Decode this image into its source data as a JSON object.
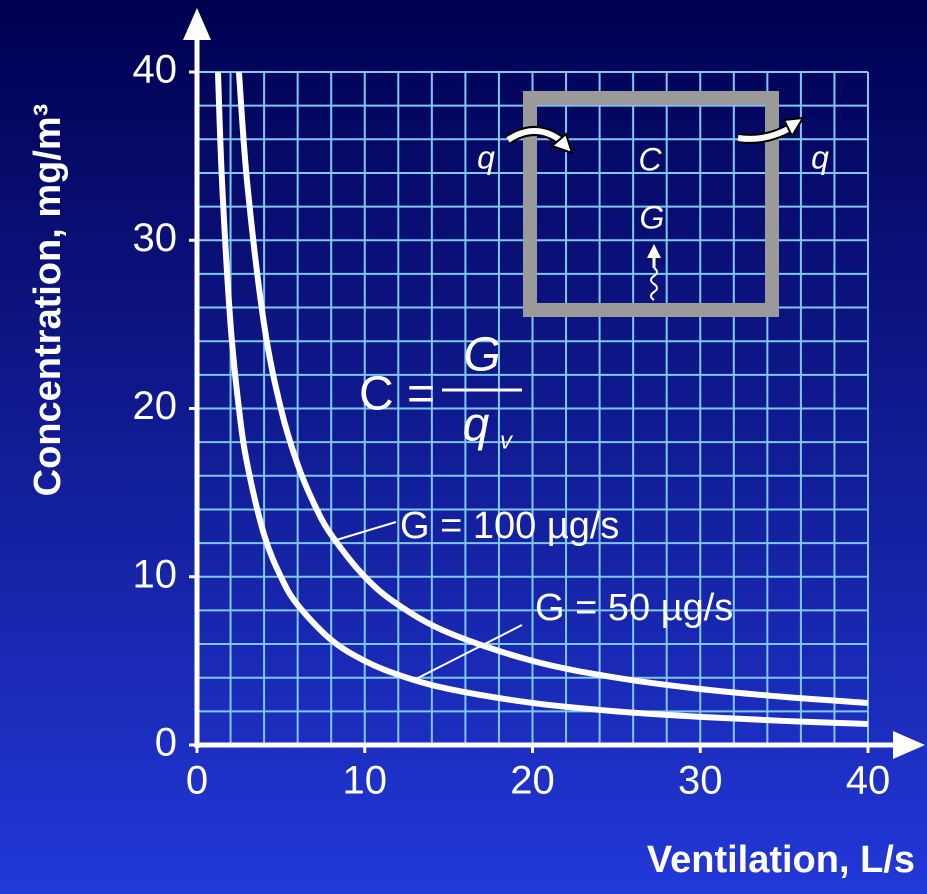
{
  "chart_data": {
    "type": "line",
    "xlabel": "Ventilation, L/s",
    "ylabel": "Concentration, mg/m³",
    "xlim": [
      0,
      40
    ],
    "ylim": [
      0,
      40
    ],
    "xticks": [
      0,
      10,
      20,
      30,
      40
    ],
    "yticks": [
      0,
      10,
      20,
      30,
      40
    ],
    "x_minor_grid": [
      2,
      4,
      6,
      8,
      10,
      12,
      14,
      16,
      18,
      20,
      22,
      24,
      26,
      28,
      30,
      32,
      34,
      36,
      38,
      40
    ],
    "y_minor_grid": [
      2,
      4,
      6,
      8,
      10,
      12,
      14,
      16,
      18,
      20,
      22,
      24,
      26,
      28,
      30,
      32,
      34,
      36,
      38,
      40
    ],
    "grid": true,
    "grid_color": "#7ec8f0",
    "series": [
      {
        "name": "G = 100 µg/s",
        "color": "#ffffff",
        "x": [
          2.5,
          3,
          4,
          5,
          6,
          7,
          8,
          10,
          12,
          15,
          20,
          25,
          30,
          35,
          40
        ],
        "values": [
          40,
          33.33,
          25,
          20,
          16.67,
          14.29,
          12.5,
          10,
          8.33,
          6.67,
          5,
          4,
          3.33,
          2.86,
          2.5
        ]
      },
      {
        "name": "G = 50 µg/s",
        "color": "#ffffff",
        "x": [
          1.25,
          1.5,
          2,
          2.5,
          3,
          4,
          5,
          6,
          8,
          10,
          12,
          15,
          20,
          25,
          30,
          35,
          40
        ],
        "values": [
          40,
          33.33,
          25,
          20,
          16.67,
          12.5,
          10,
          8.33,
          6.25,
          5,
          4.17,
          3.33,
          2.5,
          2,
          1.67,
          1.43,
          1.25
        ]
      }
    ],
    "diagram": {
      "inflow": "q",
      "concentration": "C",
      "source": "G",
      "outflow": "q"
    },
    "formula": {
      "lhs": "C =",
      "numerator": "G",
      "denominator": "q",
      "subscript": "v"
    }
  }
}
